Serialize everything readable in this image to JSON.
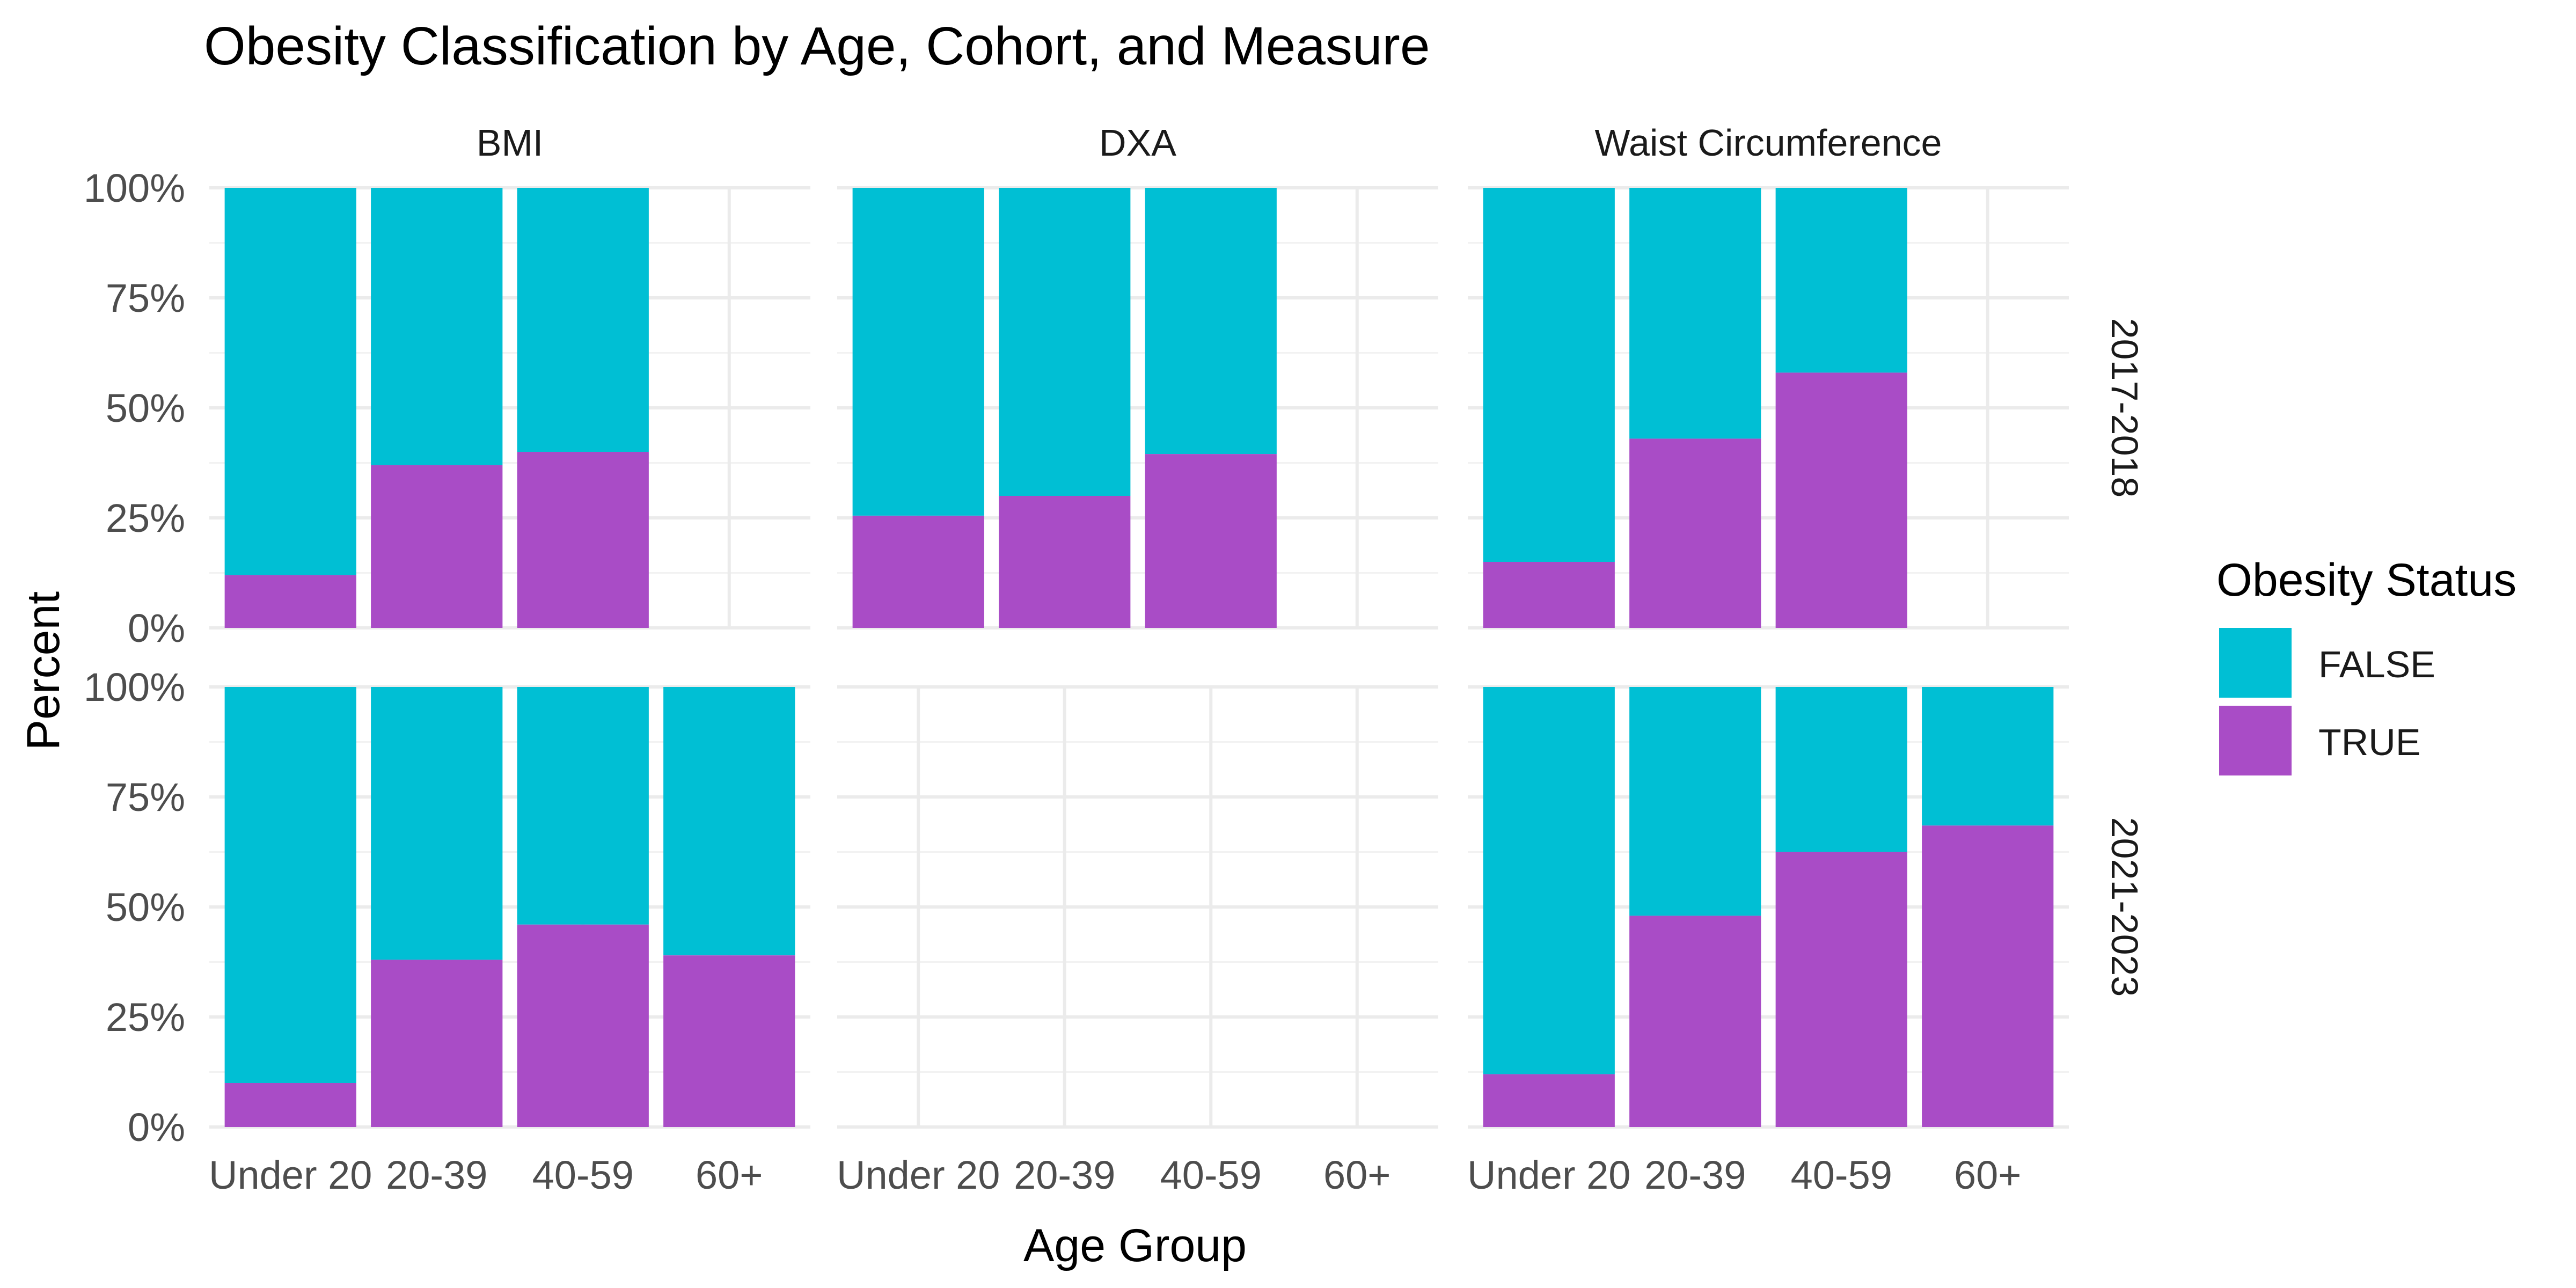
{
  "chart_data": {
    "type": "bar",
    "stacked": true,
    "title": "Obesity Classification by Age, Cohort, and Measure",
    "xlabel": "Age Group",
    "ylabel": "Percent",
    "ylim": [
      0,
      100
    ],
    "y_ticks": [
      "0%",
      "25%",
      "50%",
      "75%",
      "100%"
    ],
    "categories": [
      "Under 20",
      "20-39",
      "40-59",
      "60+"
    ],
    "facet_columns": [
      "BMI",
      "DXA",
      "Waist Circumference"
    ],
    "facet_rows": [
      "2017-2018",
      "2021-2023"
    ],
    "legend": {
      "title": "Obesity Status",
      "position": "right",
      "items": [
        {
          "label": "FALSE",
          "color": "#00BFD4"
        },
        {
          "label": "TRUE",
          "color": "#A94CC6"
        }
      ]
    },
    "grid": true,
    "panels": [
      {
        "row": "2017-2018",
        "column": "BMI",
        "true_percent": [
          12,
          37,
          40,
          null
        ]
      },
      {
        "row": "2017-2018",
        "column": "DXA",
        "true_percent": [
          25.5,
          30,
          39.5,
          null
        ]
      },
      {
        "row": "2017-2018",
        "column": "Waist Circumference",
        "true_percent": [
          15,
          43,
          58,
          null
        ]
      },
      {
        "row": "2021-2023",
        "column": "BMI",
        "true_percent": [
          10,
          38,
          46,
          39
        ]
      },
      {
        "row": "2021-2023",
        "column": "DXA",
        "true_percent": [
          null,
          null,
          null,
          null
        ]
      },
      {
        "row": "2021-2023",
        "column": "Waist Circumference",
        "true_percent": [
          12,
          48,
          62.5,
          68.5
        ]
      }
    ]
  }
}
